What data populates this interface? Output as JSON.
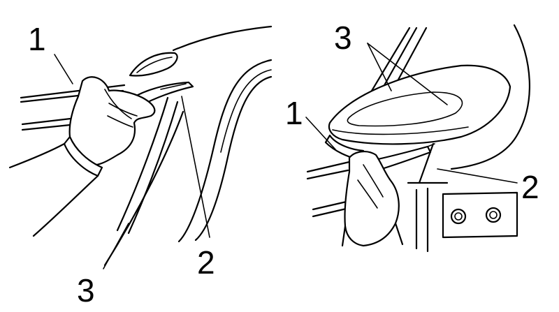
{
  "left_panel": {
    "callouts": [
      {
        "id": "1",
        "text": "1"
      },
      {
        "id": "2",
        "text": "2"
      },
      {
        "id": "3",
        "text": "3"
      }
    ]
  },
  "right_panel": {
    "callouts": [
      {
        "id": "1",
        "text": "1"
      },
      {
        "id": "2",
        "text": "2"
      },
      {
        "id": "3",
        "text": "3"
      }
    ]
  },
  "colors": {
    "line": "#000000",
    "background": "#ffffff"
  }
}
